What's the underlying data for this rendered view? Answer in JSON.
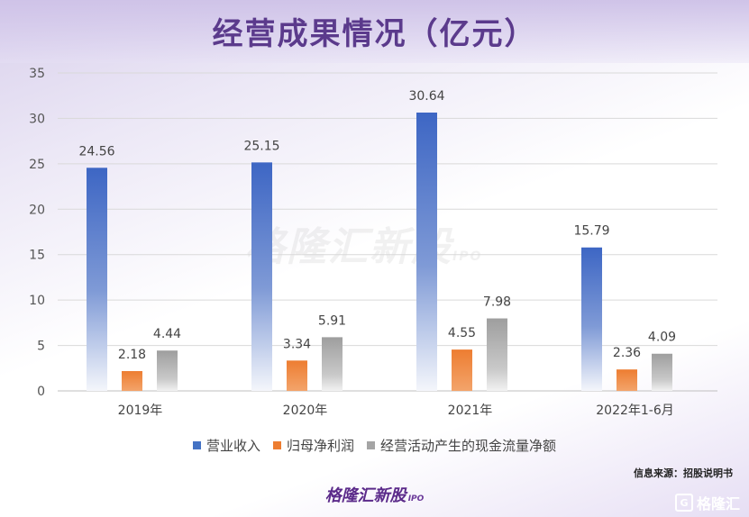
{
  "title": "经营成果情况（亿元）",
  "watermark": {
    "text": "格隆汇新股",
    "suffix": "IPO"
  },
  "source_text": "信息来源：招股说明书",
  "brand": {
    "text": "格隆汇新股",
    "suffix": "IPO"
  },
  "corner_logo": {
    "glyph": "G",
    "text": "格隆汇"
  },
  "colors": {
    "revenue": "#4472c4",
    "profit": "#ed7d31",
    "cashflow": "#a5a5a5",
    "title": "#5b3a8c",
    "grid": "#d9d9d9"
  },
  "chart_data": {
    "type": "bar",
    "title": "经营成果情况（亿元）",
    "categories": [
      "2019年",
      "2020年",
      "2021年",
      "2022年1-6月"
    ],
    "series": [
      {
        "name": "营业收入",
        "values": [
          24.56,
          25.15,
          30.64,
          15.79
        ]
      },
      {
        "name": "归母净利润",
        "values": [
          2.18,
          3.34,
          4.55,
          2.36
        ]
      },
      {
        "name": "经营活动产生的现金流量净额",
        "values": [
          4.44,
          5.91,
          7.98,
          4.09
        ]
      }
    ],
    "data_labels": [
      [
        "24.56",
        "25.15",
        "30.64",
        "15.79"
      ],
      [
        "2.18",
        "3.34",
        "4.55",
        "2.36"
      ],
      [
        "4.44",
        "5.91",
        "7.98",
        "4.09"
      ]
    ],
    "ylim": [
      0,
      35
    ],
    "yticks": [
      "0",
      "5",
      "10",
      "15",
      "20",
      "25",
      "30",
      "35"
    ],
    "xlabel": "",
    "ylabel": "",
    "grid": true,
    "legend": "bottom"
  }
}
